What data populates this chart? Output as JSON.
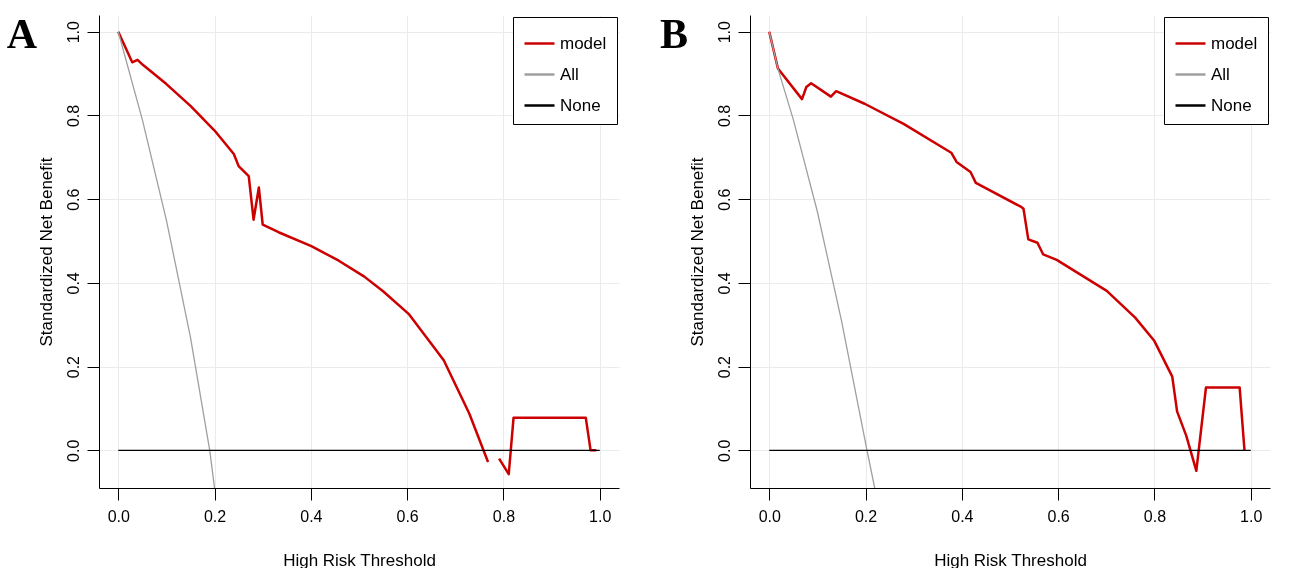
{
  "chart_data": [
    {
      "type": "line",
      "title": "A",
      "xlabel": "High Risk Threshold",
      "ylabel": "Standardized Net Benefit",
      "xlim": [
        -0.04,
        1.04
      ],
      "ylim": [
        -0.09,
        1.04
      ],
      "xticks": [
        {
          "value": 0,
          "label": "0.0"
        },
        {
          "value": 0.2,
          "label": "0.2"
        },
        {
          "value": 0.4,
          "label": "0.4"
        },
        {
          "value": 0.6,
          "label": "0.6"
        },
        {
          "value": 0.8,
          "label": "0.8"
        },
        {
          "value": 1,
          "label": "1.0"
        }
      ],
      "yticks": [
        {
          "value": 0,
          "label": "0.0"
        },
        {
          "value": 0.2,
          "label": "0.2"
        },
        {
          "value": 0.4,
          "label": "0.4"
        },
        {
          "value": 0.6,
          "label": "0.6"
        },
        {
          "value": 0.8,
          "label": "0.8"
        },
        {
          "value": 1,
          "label": "1.0"
        }
      ],
      "grid": true,
      "legend": "top right",
      "series": [
        {
          "name": "model",
          "color": "#cc0000",
          "x": [
            0,
            0.029,
            0.04,
            0.051,
            0.1,
            0.15,
            0.2,
            0.24,
            0.25,
            0.271,
            0.281,
            0.292,
            0.3,
            0.333,
            0.401,
            0.458,
            0.511,
            0.55,
            0.603,
            0.676,
            0.729,
            0.768,
            0.778,
            0.785,
            0.791,
            0.811,
            0.821,
            0.971,
            0.981,
            0.993
          ],
          "values": [
            1.0,
            0.927,
            0.933,
            0.921,
            0.875,
            0.823,
            0.764,
            0.708,
            0.679,
            0.655,
            0.551,
            0.628,
            0.539,
            0.521,
            0.488,
            0.453,
            0.415,
            0.38,
            0.326,
            0.215,
            0.088,
            -0.028,
            null,
            null,
            -0.02,
            -0.057,
            0.078,
            0.078,
            0,
            0
          ]
        },
        {
          "name": "All",
          "color": "#a0a0a0",
          "x": [
            0,
            0.05,
            0.1,
            0.15,
            0.19,
            0.2
          ],
          "values": [
            1,
            0.79,
            0.55,
            0.27,
            0,
            -0.09
          ]
        },
        {
          "name": "None",
          "color": "#000000",
          "x": [
            0,
            1
          ],
          "values": [
            0,
            0
          ]
        }
      ]
    },
    {
      "type": "line",
      "title": "B",
      "xlabel": "High Risk Threshold",
      "ylabel": "Standardized Net Benefit",
      "xlim": [
        -0.04,
        1.04
      ],
      "ylim": [
        -0.09,
        1.04
      ],
      "xticks": [
        {
          "value": 0,
          "label": "0.0"
        },
        {
          "value": 0.2,
          "label": "0.2"
        },
        {
          "value": 0.4,
          "label": "0.4"
        },
        {
          "value": 0.6,
          "label": "0.6"
        },
        {
          "value": 0.8,
          "label": "0.8"
        },
        {
          "value": 1,
          "label": "1.0"
        }
      ],
      "yticks": [
        {
          "value": 0,
          "label": "0.0"
        },
        {
          "value": 0.2,
          "label": "0.2"
        },
        {
          "value": 0.4,
          "label": "0.4"
        },
        {
          "value": 0.6,
          "label": "0.6"
        },
        {
          "value": 0.8,
          "label": "0.8"
        },
        {
          "value": 1,
          "label": "1.0"
        }
      ],
      "grid": true,
      "legend": "top right",
      "series": [
        {
          "name": "model",
          "color": "#cc0000",
          "x": [
            0,
            0.018,
            0.068,
            0.077,
            0.087,
            0.128,
            0.139,
            0.198,
            0.279,
            0.378,
            0.389,
            0.418,
            0.429,
            0.524,
            0.528,
            0.538,
            0.557,
            0.569,
            0.597,
            0.701,
            0.76,
            0.8,
            0.837,
            0.847,
            0.866,
            0.887,
            0.907,
            0.977,
            0.987
          ],
          "values": [
            1.0,
            0.912,
            0.839,
            0.868,
            0.877,
            0.845,
            0.858,
            0.828,
            0.78,
            0.711,
            0.689,
            0.665,
            0.639,
            0.581,
            0.577,
            0.504,
            0.496,
            0.468,
            0.455,
            0.381,
            0.317,
            0.261,
            0.176,
            0.093,
            0.035,
            -0.049,
            0.15,
            0.15,
            0
          ]
        },
        {
          "name": "All",
          "color": "#a0a0a0",
          "x": [
            0,
            0.018,
            0.05,
            0.1,
            0.15,
            0.203,
            0.219
          ],
          "values": [
            1,
            0.912,
            0.79,
            0.57,
            0.31,
            0,
            -0.09
          ]
        },
        {
          "name": "None",
          "color": "#000000",
          "x": [
            0,
            1
          ],
          "values": [
            0,
            0
          ]
        }
      ]
    }
  ]
}
